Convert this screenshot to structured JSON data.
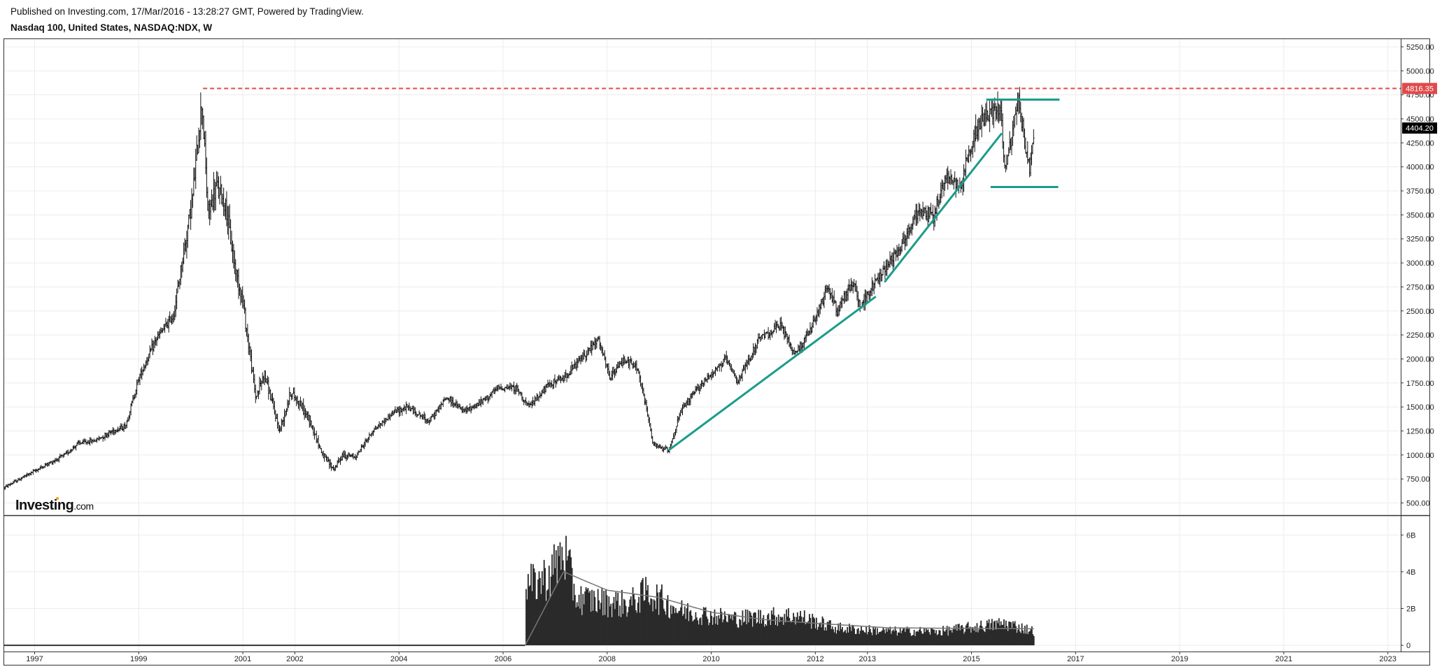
{
  "header": {
    "published": "Published on Investing.com, 17/Mar/2016 - 13:28:27 GMT, Powered by TradingView.",
    "title": "Nasdaq 100, United States, NASDAQ:NDX, W"
  },
  "logo": {
    "main": "Investing",
    "suffix": ".com"
  },
  "colors": {
    "price_bar": "#111111",
    "trendline": "#1a9c8a",
    "resistance": "#e04a4a",
    "last_price_bg": "#000000",
    "grid": "#ececec"
  },
  "chart_data": [
    {
      "type": "ohlc",
      "title": "Nasdaq 100, United States, NASDAQ:NDX, W",
      "interval": "W",
      "x_range": [
        "1996-06-01",
        "2023-04-01"
      ],
      "ylim": [
        380,
        5330
      ],
      "grid": true,
      "x_ticks": [
        "1997",
        "1999",
        "2001",
        "2002",
        "2004",
        "2006",
        "2008",
        "2010",
        "2012",
        "2013",
        "2015",
        "2017",
        "2019",
        "2021",
        "2023"
      ],
      "y_ticks": [
        "500.00",
        "750.00",
        "1000.00",
        "1250.00",
        "1500.00",
        "1750.00",
        "2000.00",
        "2250.00",
        "2500.00",
        "2750.00",
        "3000.00",
        "3250.00",
        "3500.00",
        "3750.00",
        "4000.00",
        "4250.00",
        "4500.00",
        "4750.00",
        "5000.00",
        "5250.00"
      ],
      "price_path": [
        [
          "1996-06-01",
          660
        ],
        [
          "1996-10-01",
          760
        ],
        [
          "1997-03-01",
          880
        ],
        [
          "1997-08-01",
          1000
        ],
        [
          "1997-11-01",
          1120
        ],
        [
          "1998-03-01",
          1150
        ],
        [
          "1998-07-01",
          1250
        ],
        [
          "1998-10-01",
          1300
        ],
        [
          "1999-01-01",
          1800
        ],
        [
          "1999-05-01",
          2200
        ],
        [
          "1999-09-01",
          2450
        ],
        [
          "1999-11-01",
          3000
        ],
        [
          "2000-01-15",
          3700
        ],
        [
          "2000-03-20",
          4700
        ],
        [
          "2000-05-01",
          3500
        ],
        [
          "2000-07-01",
          3800
        ],
        [
          "2000-09-01",
          3600
        ],
        [
          "2000-11-01",
          3000
        ],
        [
          "2001-01-01",
          2600
        ],
        [
          "2001-04-01",
          1600
        ],
        [
          "2001-06-01",
          1850
        ],
        [
          "2001-09-15",
          1250
        ],
        [
          "2001-12-01",
          1650
        ],
        [
          "2002-02-01",
          1550
        ],
        [
          "2002-05-01",
          1300
        ],
        [
          "2002-07-15",
          1000
        ],
        [
          "2002-10-01",
          850
        ],
        [
          "2002-12-01",
          1000
        ],
        [
          "2003-03-01",
          980
        ],
        [
          "2003-07-01",
          1250
        ],
        [
          "2003-12-01",
          1450
        ],
        [
          "2004-03-01",
          1500
        ],
        [
          "2004-08-01",
          1350
        ],
        [
          "2004-12-01",
          1600
        ],
        [
          "2005-04-01",
          1450
        ],
        [
          "2005-08-01",
          1550
        ],
        [
          "2005-12-01",
          1700
        ],
        [
          "2006-04-01",
          1700
        ],
        [
          "2006-07-01",
          1500
        ],
        [
          "2006-12-01",
          1750
        ],
        [
          "2007-03-01",
          1800
        ],
        [
          "2007-07-01",
          2000
        ],
        [
          "2007-10-31",
          2200
        ],
        [
          "2008-01-20",
          1800
        ],
        [
          "2008-05-01",
          2000
        ],
        [
          "2008-08-01",
          1900
        ],
        [
          "2008-10-15",
          1400
        ],
        [
          "2008-11-20",
          1100
        ],
        [
          "2009-03-09",
          1050
        ],
        [
          "2009-06-01",
          1450
        ],
        [
          "2009-10-01",
          1700
        ],
        [
          "2010-04-15",
          2000
        ],
        [
          "2010-07-01",
          1750
        ],
        [
          "2010-12-01",
          2200
        ],
        [
          "2011-05-01",
          2350
        ],
        [
          "2011-08-10",
          2050
        ],
        [
          "2011-12-01",
          2300
        ],
        [
          "2012-04-01",
          2750
        ],
        [
          "2012-06-01",
          2500
        ],
        [
          "2012-09-20",
          2800
        ],
        [
          "2012-11-15",
          2550
        ],
        [
          "2013-05-01",
          2950
        ],
        [
          "2013-09-01",
          3200
        ],
        [
          "2013-12-31",
          3550
        ],
        [
          "2014-04-15",
          3500
        ],
        [
          "2014-07-01",
          3900
        ],
        [
          "2014-10-15",
          3800
        ],
        [
          "2014-12-31",
          4250
        ],
        [
          "2015-03-01",
          4450
        ],
        [
          "2015-07-20",
          4650
        ],
        [
          "2015-08-24",
          3950
        ],
        [
          "2015-11-30",
          4700
        ],
        [
          "2016-01-15",
          4200
        ],
        [
          "2016-02-11",
          3950
        ],
        [
          "2016-03-17",
          4404
        ]
      ],
      "annotations": {
        "resistance": {
          "value": 4816.35,
          "from": "2000-03-27",
          "label": "4816.35"
        },
        "last_price": {
          "value": 4404.2,
          "label": "4404.20"
        },
        "trendlines": [
          {
            "from": [
              "2009-03-09",
              1050
            ],
            "to": [
              "2013-03-01",
              2650
            ]
          },
          {
            "from": [
              "2013-05-01",
              2800
            ],
            "to": [
              "2015-08-01",
              4350
            ]
          }
        ],
        "range_lines": [
          {
            "value": 4700,
            "from": "2015-04-15",
            "to": "2016-09-10"
          },
          {
            "value": 3790,
            "from": "2015-05-15",
            "to": "2016-09-01"
          }
        ]
      }
    },
    {
      "type": "bar",
      "title": "",
      "x_range": [
        "1996-06-01",
        "2023-04-01"
      ],
      "ylim": [
        -0.3,
        7.0
      ],
      "y_ticks": [
        "0",
        "2B",
        "4B",
        "6B"
      ],
      "volume_start": "2006-06-05",
      "volume_path_billions": [
        [
          "2006-06-05",
          0
        ],
        [
          "2006-06-12",
          3.7
        ],
        [
          "2006-12-01",
          4.5
        ],
        [
          "2007-02-28",
          6.1
        ],
        [
          "2007-06-01",
          3.0
        ],
        [
          "2007-12-01",
          2.8
        ],
        [
          "2008-06-01",
          2.6
        ],
        [
          "2008-10-10",
          3.4
        ],
        [
          "2009-06-01",
          2.2
        ],
        [
          "2010-06-01",
          1.7
        ],
        [
          "2011-08-10",
          1.9
        ],
        [
          "2012-06-01",
          1.1
        ],
        [
          "2013-06-01",
          0.9
        ],
        [
          "2014-06-01",
          0.9
        ],
        [
          "2015-08-24",
          1.4
        ],
        [
          "2016-03-17",
          0.9
        ]
      ],
      "moving_average_path_billions": [
        [
          "2006-06-05",
          0
        ],
        [
          "2007-03-01",
          4.0
        ],
        [
          "2008-01-01",
          3.0
        ],
        [
          "2009-01-01",
          2.6
        ],
        [
          "2010-01-01",
          1.8
        ],
        [
          "2011-01-01",
          1.4
        ],
        [
          "2012-01-01",
          1.2
        ],
        [
          "2013-06-01",
          0.95
        ],
        [
          "2016-03-17",
          0.9
        ]
      ]
    }
  ]
}
